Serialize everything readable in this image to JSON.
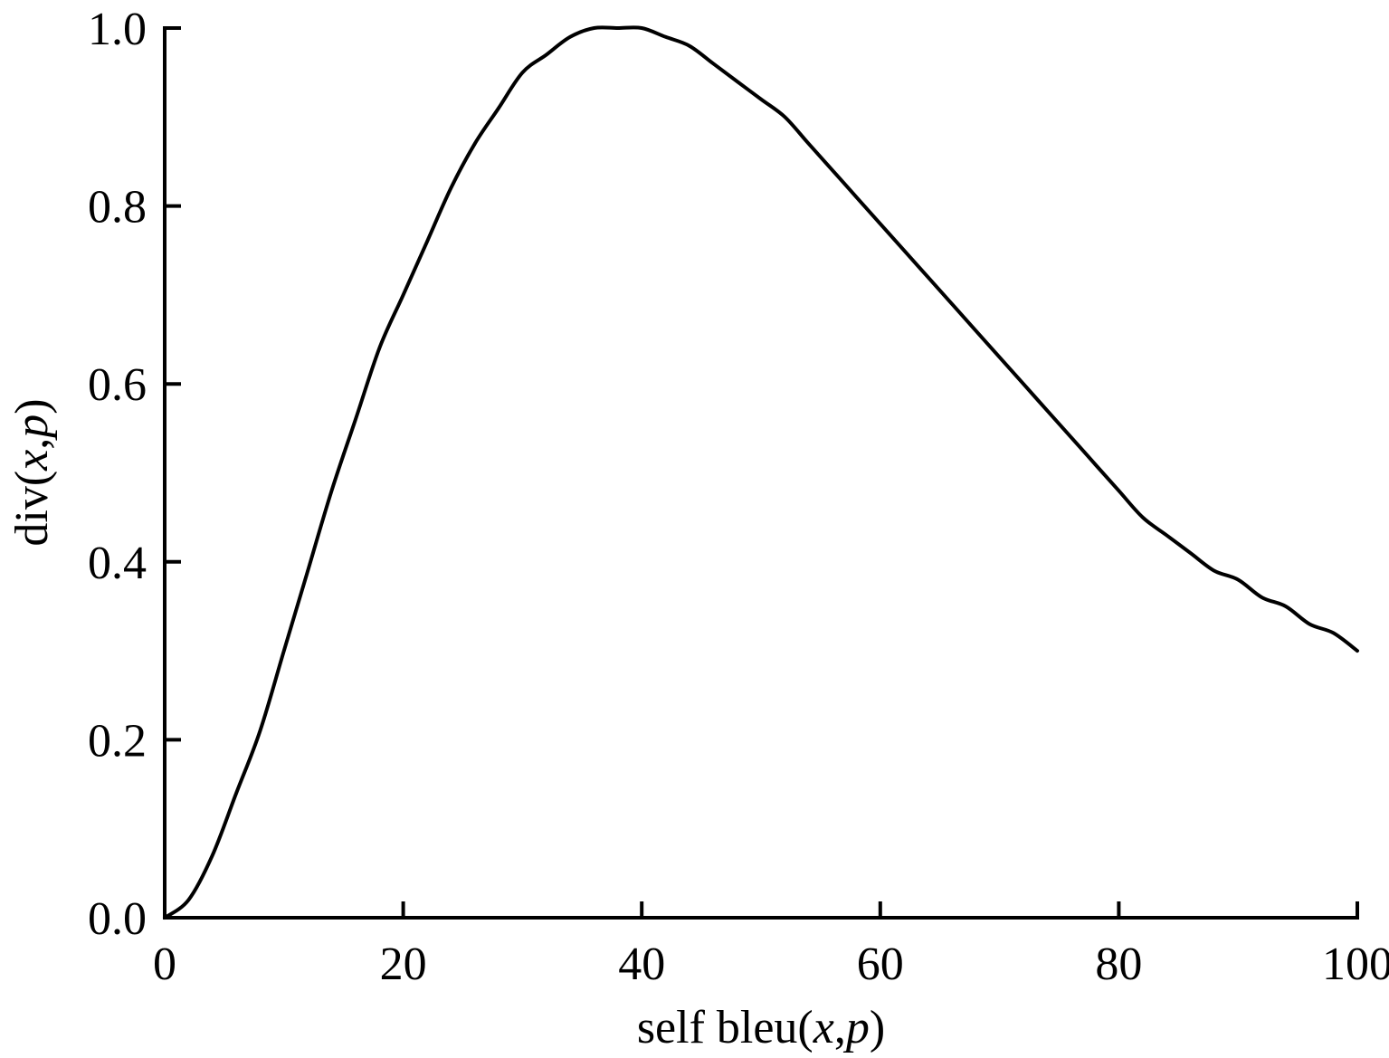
{
  "chart_data": {
    "type": "line",
    "title": "",
    "xlabel": {
      "prefix": "self bleu(",
      "var1": "x",
      "sep": ",",
      "var2": "p",
      "suffix": ")"
    },
    "ylabel": {
      "prefix": "div(",
      "var1": "x",
      "sep": ",",
      "var2": "p",
      "suffix": ")"
    },
    "xlim": [
      0,
      100
    ],
    "ylim": [
      0,
      1.0
    ],
    "x_ticks": [
      0,
      20,
      40,
      60,
      80,
      100
    ],
    "x_tick_labels": [
      "0",
      "20",
      "40",
      "60",
      "80",
      "100"
    ],
    "y_ticks": [
      0,
      0.2,
      0.4,
      0.6,
      0.8,
      1.0
    ],
    "y_tick_labels": [
      "0.0",
      "0.2",
      "0.4",
      "0.6",
      "0.8",
      "1.0"
    ],
    "grid": false,
    "legend": "none",
    "line_color": "#000000",
    "series": [
      {
        "x": [
          0,
          2,
          4,
          6,
          8,
          10,
          12,
          14,
          16,
          18,
          20,
          22,
          24,
          26,
          28,
          30,
          32,
          34,
          36,
          38,
          40,
          42,
          44,
          46,
          48,
          50,
          52,
          54,
          56,
          58,
          60,
          62,
          64,
          66,
          68,
          70,
          72,
          74,
          76,
          78,
          80,
          82,
          84,
          86,
          88,
          90,
          92,
          94,
          96,
          98,
          100
        ],
        "y": [
          0.0,
          0.02,
          0.07,
          0.14,
          0.21,
          0.3,
          0.39,
          0.48,
          0.56,
          0.64,
          0.7,
          0.76,
          0.82,
          0.87,
          0.91,
          0.95,
          0.97,
          0.99,
          1.0,
          1.0,
          1.0,
          0.99,
          0.98,
          0.96,
          0.94,
          0.92,
          0.9,
          0.87,
          0.84,
          0.81,
          0.78,
          0.75,
          0.72,
          0.69,
          0.66,
          0.63,
          0.6,
          0.57,
          0.54,
          0.51,
          0.48,
          0.45,
          0.43,
          0.41,
          0.39,
          0.38,
          0.36,
          0.35,
          0.33,
          0.32,
          0.3
        ]
      }
    ]
  }
}
